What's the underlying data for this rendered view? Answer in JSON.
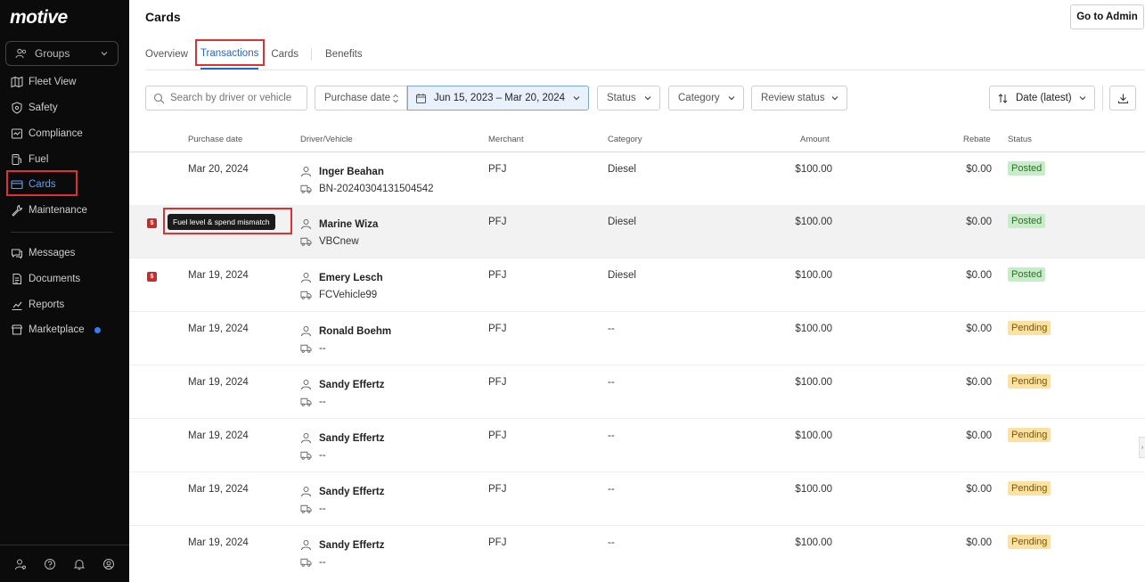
{
  "app": {
    "logo": "motive"
  },
  "sidebar": {
    "groups_label": "Groups",
    "items": [
      {
        "label": "Fleet View",
        "icon": "map-icon"
      },
      {
        "label": "Safety",
        "icon": "shield-icon"
      },
      {
        "label": "Compliance",
        "icon": "compliance-icon"
      },
      {
        "label": "Fuel",
        "icon": "fuel-icon"
      },
      {
        "label": "Cards",
        "icon": "card-icon",
        "active": true
      },
      {
        "label": "Maintenance",
        "icon": "wrench-icon"
      },
      {
        "label": "Messages",
        "icon": "messages-icon"
      },
      {
        "label": "Documents",
        "icon": "document-icon"
      },
      {
        "label": "Reports",
        "icon": "reports-icon"
      },
      {
        "label": "Marketplace",
        "icon": "marketplace-icon"
      }
    ],
    "bottom_icons": [
      "user-admin-icon",
      "help-icon",
      "bell-icon",
      "profile-icon"
    ]
  },
  "header": {
    "title": "Cards",
    "admin_button": "Go to Admin"
  },
  "tabs": [
    {
      "label": "Overview"
    },
    {
      "label": "Transactions",
      "active": true
    },
    {
      "label": "Cards"
    },
    {
      "label": "Benefits"
    }
  ],
  "filters": {
    "search_placeholder": "Search by driver or vehicle",
    "purchase_date": "Purchase date",
    "date_range": "Jun 15, 2023 – Mar 20, 2024",
    "status": "Status",
    "category": "Category",
    "review_status": "Review status",
    "sort": "Date (latest)"
  },
  "table": {
    "columns": [
      "Purchase date",
      "Driver/Vehicle",
      "Merchant",
      "Category",
      "Amount",
      "Rebate",
      "Status"
    ],
    "tooltip": "Fuel level & spend mismatch",
    "rows": [
      {
        "date": "Mar 20, 2024",
        "driver": "Inger Beahan",
        "vehicle": "BN-20240304131504542",
        "merchant": "PFJ",
        "category": "Diesel",
        "amount": "$100.00",
        "rebate": "$0.00",
        "status": "Posted"
      },
      {
        "date": "",
        "driver": "Marine Wiza",
        "vehicle": "VBCnew",
        "merchant": "PFJ",
        "category": "Diesel",
        "amount": "$100.00",
        "rebate": "$0.00",
        "status": "Posted"
      },
      {
        "date": "Mar 19, 2024",
        "driver": "Emery Lesch",
        "vehicle": "FCVehicle99",
        "merchant": "PFJ",
        "category": "Diesel",
        "amount": "$100.00",
        "rebate": "$0.00",
        "status": "Posted"
      },
      {
        "date": "Mar 19, 2024",
        "driver": "Ronald Boehm",
        "vehicle": "--",
        "merchant": "PFJ",
        "category": "--",
        "amount": "$100.00",
        "rebate": "$0.00",
        "status": "Pending"
      },
      {
        "date": "Mar 19, 2024",
        "driver": "Sandy Effertz",
        "vehicle": "--",
        "merchant": "PFJ",
        "category": "--",
        "amount": "$100.00",
        "rebate": "$0.00",
        "status": "Pending"
      },
      {
        "date": "Mar 19, 2024",
        "driver": "Sandy Effertz",
        "vehicle": "--",
        "merchant": "PFJ",
        "category": "--",
        "amount": "$100.00",
        "rebate": "$0.00",
        "status": "Pending"
      },
      {
        "date": "Mar 19, 2024",
        "driver": "Sandy Effertz",
        "vehicle": "--",
        "merchant": "PFJ",
        "category": "--",
        "amount": "$100.00",
        "rebate": "$0.00",
        "status": "Pending"
      },
      {
        "date": "Mar 19, 2024",
        "driver": "Sandy Effertz",
        "vehicle": "--",
        "merchant": "PFJ",
        "category": "--",
        "amount": "$100.00",
        "rebate": "$0.00",
        "status": "Pending"
      }
    ]
  },
  "colors": {
    "sidebar_bg": "#0b0b0b",
    "accent": "#2266cc",
    "highlight_box": "#e03131",
    "posted_bg": "#c8ecc8",
    "pending_bg": "#fbe2a3"
  }
}
